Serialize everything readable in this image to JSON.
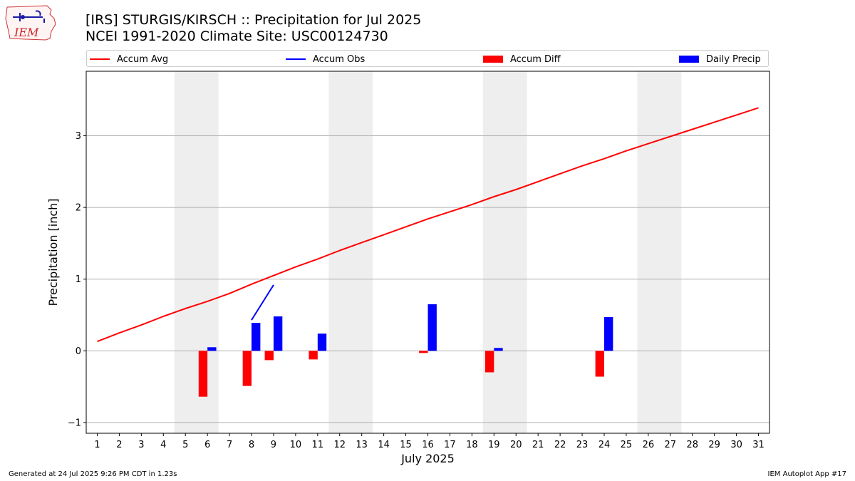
{
  "logo": {
    "text": "IEM",
    "color": "#cc2222"
  },
  "header": {
    "title_line1": "[IRS] STURGIS/KIRSCH :: Precipitation for Jul 2025",
    "title_line2": "NCEI 1991-2020 Climate Site: USC00124730"
  },
  "legend": [
    {
      "label": "Accum Avg",
      "kind": "line",
      "color": "#ff0000"
    },
    {
      "label": "Accum Obs",
      "kind": "line",
      "color": "#0000ff"
    },
    {
      "label": "Accum Diff",
      "kind": "patch",
      "color": "#ff0000"
    },
    {
      "label": "Daily Precip",
      "kind": "patch",
      "color": "#0000ff"
    }
  ],
  "chart_data": {
    "type": "bar",
    "title": "[IRS] STURGIS/KIRSCH :: Precipitation for Jul 2025",
    "subtitle": "NCEI 1991-2020 Climate Site: USC00124730",
    "xlabel": "July 2025",
    "ylabel": "Precipitation [inch]",
    "xlim": [
      0.5,
      31.5
    ],
    "ylim": [
      -1.15,
      3.9
    ],
    "x_ticks": [
      1,
      2,
      3,
      4,
      5,
      6,
      7,
      8,
      9,
      10,
      11,
      12,
      13,
      14,
      15,
      16,
      17,
      18,
      19,
      20,
      21,
      22,
      23,
      24,
      25,
      26,
      27,
      28,
      29,
      30,
      31
    ],
    "y_ticks": [
      -1,
      0,
      1,
      2,
      3
    ],
    "grid": "horizontal",
    "weekend_shading": [
      [
        4.5,
        6.5
      ],
      [
        11.5,
        13.5
      ],
      [
        18.5,
        20.5
      ],
      [
        25.5,
        27.5
      ]
    ],
    "series": [
      {
        "name": "Accum Avg",
        "kind": "line",
        "color": "#ff0000",
        "x": [
          1,
          2,
          3,
          4,
          5,
          6,
          7,
          8,
          9,
          10,
          11,
          12,
          13,
          14,
          15,
          16,
          17,
          18,
          19,
          20,
          21,
          22,
          23,
          24,
          25,
          26,
          27,
          28,
          29,
          30,
          31
        ],
        "values": [
          0.13,
          0.25,
          0.36,
          0.48,
          0.59,
          0.69,
          0.8,
          0.93,
          1.05,
          1.17,
          1.28,
          1.4,
          1.51,
          1.62,
          1.73,
          1.84,
          1.94,
          2.04,
          2.15,
          2.25,
          2.36,
          2.47,
          2.58,
          2.68,
          2.79,
          2.89,
          2.99,
          3.09,
          3.19,
          3.29,
          3.39
        ]
      },
      {
        "name": "Accum Obs",
        "kind": "line",
        "color": "#0000ff",
        "x": [
          8,
          9
        ],
        "values": [
          0.43,
          0.92
        ]
      },
      {
        "name": "Accum Diff",
        "kind": "bar",
        "color": "#ff0000",
        "x": [
          6,
          8,
          9,
          11,
          16,
          19,
          24
        ],
        "values": [
          -0.64,
          -0.49,
          -0.13,
          -0.12,
          -0.03,
          -0.3,
          -0.36
        ]
      },
      {
        "name": "Daily Precip",
        "kind": "bar",
        "color": "#0000ff",
        "x": [
          6,
          8,
          9,
          11,
          16,
          19,
          24
        ],
        "values": [
          0.05,
          0.39,
          0.48,
          0.24,
          0.65,
          0.04,
          0.47
        ]
      }
    ]
  },
  "footer": {
    "generated": "Generated at 24 Jul 2025 9:26 PM CDT in 1.23s",
    "app": "IEM Autoplot App #17"
  }
}
